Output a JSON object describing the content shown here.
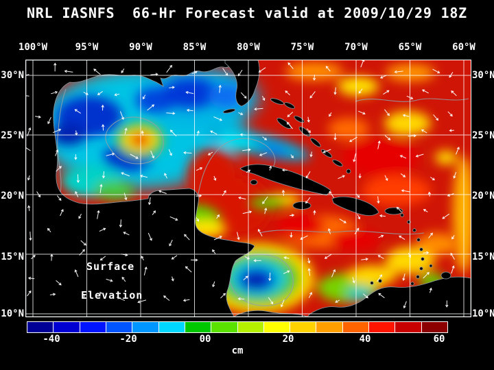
{
  "title": "NRL IASNFS  66-Hr Forecast valid at 2009/10/29 18Z",
  "map": {
    "lon_labels": [
      "100°W",
      "95°W",
      "90°W",
      "85°W",
      "80°W",
      "75°W",
      "70°W",
      "65°W",
      "60°W"
    ],
    "lat_labels": [
      "30°N",
      "25°N",
      "20°N",
      "15°N",
      "10°N"
    ],
    "overlay_label_line1": "Surface",
    "overlay_label_line2": "Elevation"
  },
  "colorbar": {
    "tick_labels": [
      "-40",
      "-20",
      "00",
      "20",
      "40",
      "60"
    ],
    "unit": "cm",
    "segment_colors": [
      "#000096",
      "#0000d2",
      "#0014ff",
      "#0055ff",
      "#0096ff",
      "#00d7ff",
      "#00c800",
      "#5ae100",
      "#b4f000",
      "#ffff00",
      "#ffd200",
      "#ffa000",
      "#ff6400",
      "#ff1400",
      "#c80000",
      "#8c0000"
    ]
  },
  "chart_data": {
    "type": "heatmap",
    "title": "NRL IASNFS 66-Hr Forecast valid at 2009/10/29 18Z",
    "model": "NRL IASNFS",
    "forecast_hour": "66-Hr",
    "valid_time": "2009/10/29 18Z",
    "variable": "Surface Elevation",
    "unit": "cm",
    "x_axis": {
      "ticks": [
        "100°W",
        "95°W",
        "90°W",
        "85°W",
        "80°W",
        "75°W",
        "70°W",
        "65°W",
        "60°W"
      ]
    },
    "y_axis": {
      "ticks": [
        "30°N",
        "25°N",
        "20°N",
        "15°N",
        "10°N"
      ]
    },
    "colorbar_ticks": [
      -40,
      -20,
      0,
      20,
      40,
      60
    ],
    "legend_position": "bottom",
    "grid": true,
    "notable_features": [
      "Gulf of Mexico mostly negative elevation (blue/cyan) with a warm red eddy near 93W 25N",
      "Caribbean Sea and western Atlantic mostly positive elevation (red/orange)",
      "Cold blue/green eddy in the southwest Caribbean near 80W 12N",
      "White arrows depict surface current vectors; land is masked black"
    ]
  }
}
